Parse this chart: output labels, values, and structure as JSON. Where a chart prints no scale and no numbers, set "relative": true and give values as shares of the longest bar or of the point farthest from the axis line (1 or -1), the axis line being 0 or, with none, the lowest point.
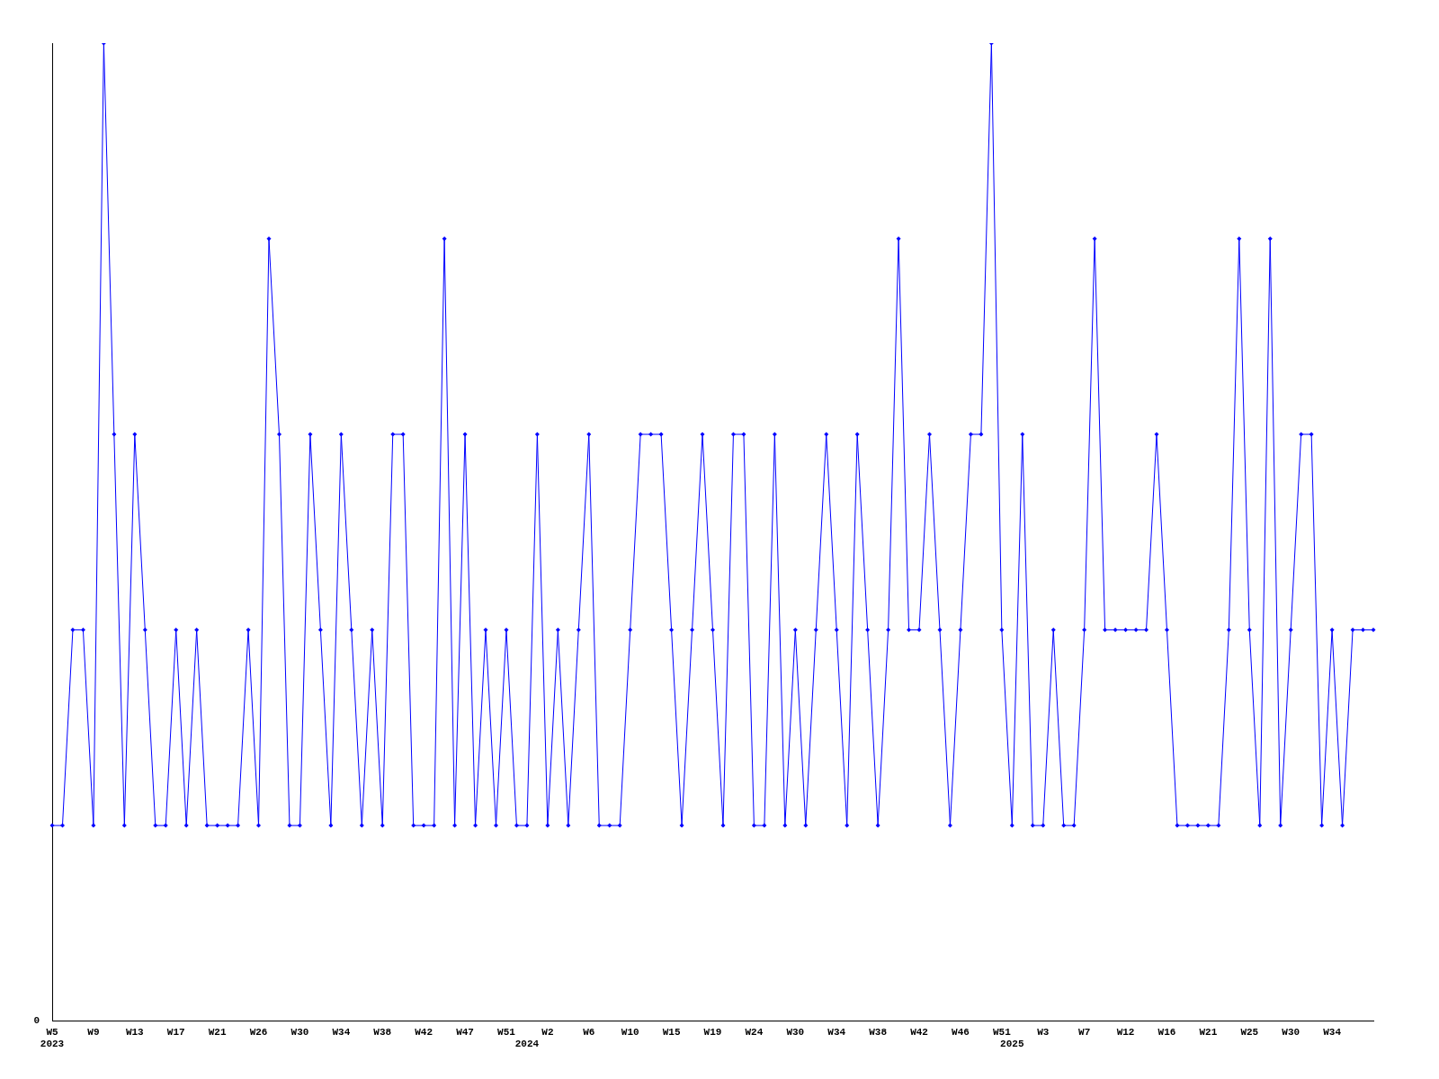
{
  "chart_data": {
    "type": "line",
    "relative": true,
    "categories": [
      "W5\n2023",
      null,
      null,
      null,
      "W9",
      null,
      null,
      null,
      "W13",
      null,
      null,
      null,
      "W17",
      null,
      null,
      null,
      "W21",
      null,
      null,
      null,
      "W26",
      null,
      null,
      null,
      "W30",
      null,
      null,
      null,
      "W34",
      null,
      null,
      null,
      "W38",
      null,
      null,
      null,
      "W42",
      null,
      null,
      null,
      "W47",
      null,
      null,
      null,
      "W51",
      null,
      "\n2024",
      null,
      "W2",
      null,
      null,
      null,
      "W6",
      null,
      null,
      null,
      "W10",
      null,
      null,
      null,
      "W15",
      null,
      null,
      null,
      "W19",
      null,
      null,
      null,
      "W24",
      null,
      null,
      null,
      "W30",
      null,
      null,
      null,
      "W34",
      null,
      null,
      null,
      "W38",
      null,
      null,
      null,
      "W42",
      null,
      null,
      null,
      "W46",
      null,
      null,
      null,
      "W51",
      "\n2025",
      null,
      null,
      "W3",
      null,
      null,
      null,
      "W7",
      null,
      null,
      null,
      "W12",
      null,
      null,
      null,
      "W16",
      null,
      null,
      null,
      "W21",
      null,
      null,
      null,
      "W25",
      null,
      null,
      null,
      "W30",
      null,
      null,
      null,
      "W34",
      null,
      null,
      null,
      null
    ],
    "series": [
      {
        "color": "#0000ff",
        "values": [
          0.2,
          0.2,
          0.4,
          0.4,
          0.2,
          1,
          0.6,
          0.2,
          0.6,
          0.4,
          0.2,
          0.2,
          0.4,
          0.2,
          0.4,
          0.2,
          0.2,
          0.2,
          0.2,
          0.4,
          0.2,
          0.8,
          0.6,
          0.2,
          0.2,
          0.6,
          0.4,
          0.2,
          0.6,
          0.4,
          0.2,
          0.4,
          0.2,
          0.6,
          0.6,
          0.2,
          0.2,
          0.2,
          0.8,
          0.2,
          0.6,
          0.2,
          0.4,
          0.2,
          0.4,
          0.2,
          0.2,
          0.6,
          0.2,
          0.4,
          0.2,
          0.4,
          0.6,
          0.2,
          0.2,
          0.2,
          0.4,
          0.6,
          0.6,
          0.6,
          0.4,
          0.2,
          0.4,
          0.6,
          0.4,
          0.2,
          0.6,
          0.6,
          0.2,
          0.2,
          0.6,
          0.2,
          0.4,
          0.2,
          0.4,
          0.6,
          0.4,
          0.2,
          0.6,
          0.4,
          0.2,
          0.4,
          0.8,
          0.4,
          0.4,
          0.6,
          0.4,
          0.2,
          0.4,
          0.6,
          0.6,
          1,
          0.4,
          0.2,
          0.6,
          0.2,
          0.2,
          0.4,
          0.2,
          0.2,
          0.4,
          0.8,
          0.4,
          0.4,
          0.4,
          0.4,
          0.4,
          0.6,
          0.4,
          0.2,
          0.2,
          0.2,
          0.2,
          0.2,
          0.4,
          0.8,
          0.4,
          0.2,
          0.8,
          0.2,
          0.4,
          0.6,
          0.6,
          0.2,
          0.4,
          0.2,
          0.4,
          0.4,
          0.4
        ]
      }
    ],
    "annotations": [
      "0"
    ],
    "marker": "diamond",
    "line_style": "solid",
    "grid": false,
    "legend": false
  }
}
